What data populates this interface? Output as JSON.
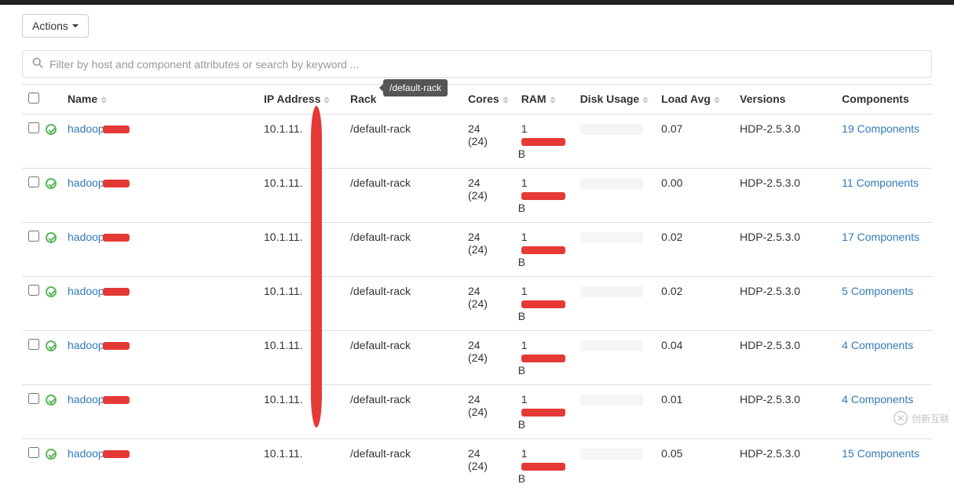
{
  "toolbar": {
    "actions_label": "Actions"
  },
  "filter": {
    "placeholder": "Filter by host and component attributes or search by keyword ..."
  },
  "tooltip": {
    "text": "/default-rack"
  },
  "columns": {
    "name": "Name",
    "ip": "IP Address",
    "rack": "Rack",
    "cores": "Cores",
    "ram": "RAM",
    "usage": "Disk Usage",
    "load": "Load Avg",
    "versions": "Versions",
    "components": "Components"
  },
  "rows": [
    {
      "host": "hadoop",
      "ip": "10.1.11.",
      "rack": "/default-rack",
      "cores": "24",
      "cores_sub": "(24)",
      "ram_suffix": "B",
      "load": "0.07",
      "version": "HDP-2.5.3.0",
      "components": "19 Components"
    },
    {
      "host": "hadoop",
      "ip": "10.1.11.",
      "rack": "/default-rack",
      "cores": "24",
      "cores_sub": "(24)",
      "ram_suffix": "B",
      "load": "0.00",
      "version": "HDP-2.5.3.0",
      "components": "11 Components"
    },
    {
      "host": "hadoop",
      "ip": "10.1.11.",
      "rack": "/default-rack",
      "cores": "24",
      "cores_sub": "(24)",
      "ram_suffix": "B",
      "load": "0.02",
      "version": "HDP-2.5.3.0",
      "components": "17 Components"
    },
    {
      "host": "hadoop",
      "ip": "10.1.11.",
      "rack": "/default-rack",
      "cores": "24",
      "cores_sub": "(24)",
      "ram_suffix": "B",
      "load": "0.02",
      "version": "HDP-2.5.3.0",
      "components": "5 Components"
    },
    {
      "host": "hadoop",
      "ip": "10.1.11.",
      "rack": "/default-rack",
      "cores": "24",
      "cores_sub": "(24)",
      "ram_suffix": "B",
      "load": "0.04",
      "version": "HDP-2.5.3.0",
      "components": "4 Components"
    },
    {
      "host": "hadoop",
      "ip": "10.1.11.",
      "rack": "/default-rack",
      "cores": "24",
      "cores_sub": "(24)",
      "ram_suffix": "B",
      "load": "0.01",
      "version": "HDP-2.5.3.0",
      "components": "4 Components"
    },
    {
      "host": "hadoop",
      "ip": "10.1.11.",
      "rack": "/default-rack",
      "cores": "24",
      "cores_sub": "(24)",
      "ram_suffix": "B",
      "load": "0.05",
      "version": "HDP-2.5.3.0",
      "components": "15 Components"
    }
  ],
  "watermark": {
    "text": "创新互联"
  },
  "colors": {
    "link": "#337ab7",
    "redact": "#e53935",
    "status_ok": "#5cb85c",
    "border": "#dddddd",
    "tooltip_bg": "#555555"
  }
}
